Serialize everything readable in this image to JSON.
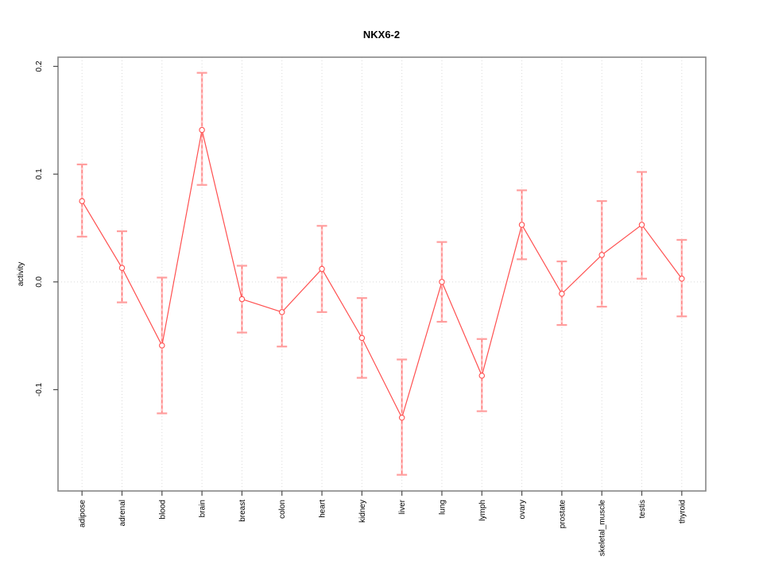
{
  "window": {
    "background_color": "#ffffff"
  },
  "chart_data": {
    "type": "line",
    "title": "NKX6-2",
    "xlabel": "",
    "ylabel": "activity",
    "legend": "none",
    "grid": "dotted vertical gridline at each category; dotted horizontal line at y=0",
    "categories": [
      "adipose",
      "adrenal",
      "blood",
      "brain",
      "breast",
      "colon",
      "heart",
      "kidney",
      "liver",
      "lung",
      "lymph",
      "ovary",
      "prostate",
      "skeletal_muscle",
      "testis",
      "thyroid"
    ],
    "series": [
      {
        "name": "activity",
        "marker": "open-circle",
        "values": [
          0.075,
          0.013,
          -0.059,
          0.141,
          -0.016,
          -0.028,
          0.012,
          -0.052,
          -0.126,
          0.0,
          -0.087,
          0.053,
          -0.011,
          0.025,
          0.053,
          0.003
        ],
        "upper": [
          0.109,
          0.047,
          0.004,
          0.194,
          0.015,
          0.004,
          0.052,
          -0.015,
          -0.072,
          0.037,
          -0.053,
          0.085,
          0.019,
          0.075,
          0.102,
          0.039
        ],
        "lower": [
          0.042,
          -0.019,
          -0.122,
          0.09,
          -0.047,
          -0.06,
          -0.028,
          -0.089,
          -0.179,
          -0.037,
          -0.12,
          0.021,
          -0.04,
          -0.023,
          0.003,
          -0.032
        ]
      }
    ],
    "yticks": [
      -0.1,
      0.0,
      0.1,
      0.2
    ],
    "ytick_labels": [
      "-0.1",
      "0.0",
      "0.1",
      "0.2"
    ],
    "ylim": [
      -0.194,
      0.2085
    ],
    "colors": {
      "line": "#ff5050",
      "marker_stroke": "#ff5050",
      "marker_fill": "#ffffff",
      "error_whisker_underlay": "#ffc4c4",
      "error_whisker_dash": "#ff6b6b",
      "error_cap": "#ff9e9e",
      "gridline": "#d9d9d9",
      "zero_line": "#d9d9d9",
      "plot_border": "#878787",
      "tick": "#4a4a4a",
      "text": "#000000"
    }
  }
}
